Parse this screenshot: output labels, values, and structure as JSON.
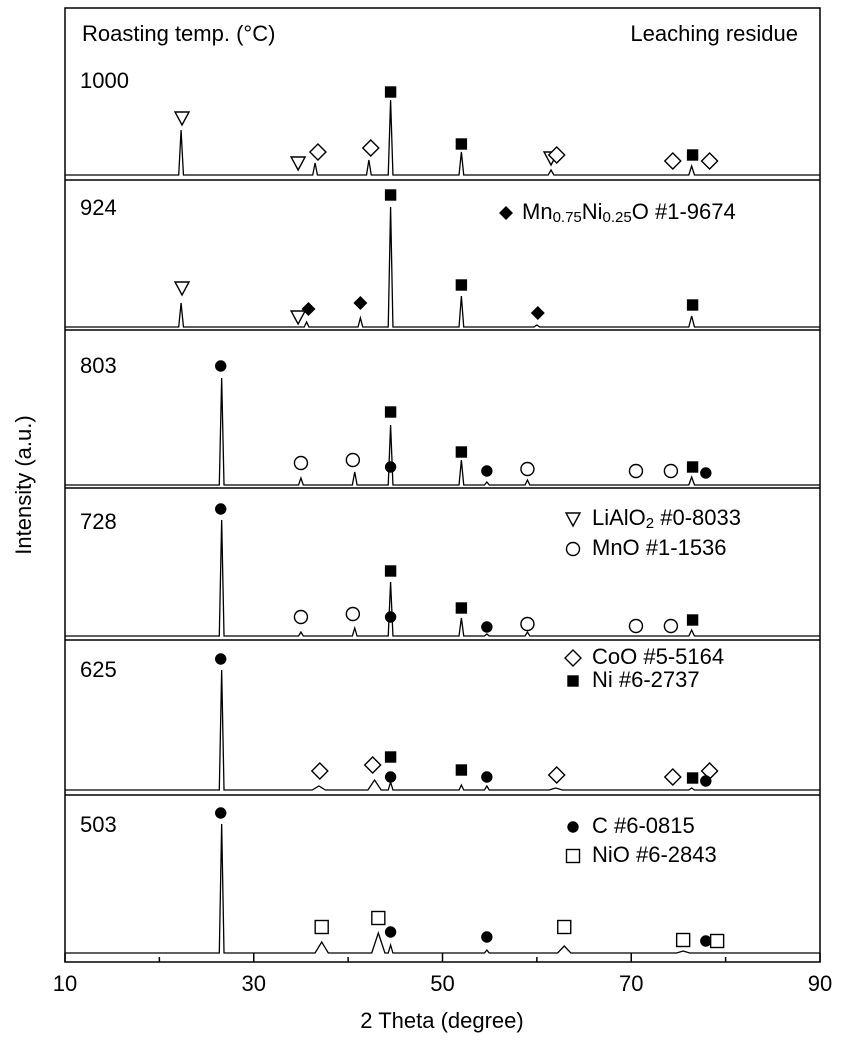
{
  "chart_data": {
    "type": "line",
    "titles": [
      "Roasting temp. (°C)",
      "Leaching residue"
    ],
    "xlabel": "2 Theta (degree)",
    "ylabel": "Intensity (a.u.)",
    "xlim": [
      10,
      90
    ],
    "xticks": [
      10,
      30,
      50,
      70,
      90
    ],
    "xminorticks": [
      20,
      40,
      60,
      80
    ],
    "ylim": [
      0,
      954
    ],
    "series": [
      {
        "name": "1000",
        "color": "#000000",
        "x": [
          10,
          22.05,
          22.3,
          22.55,
          36.25,
          36.5,
          36.75,
          41.95,
          42.2,
          42.45,
          44.25,
          44.5,
          44.75,
          51.75,
          52.0,
          52.25,
          61.2,
          61.5,
          61.8,
          76.1,
          76.4,
          76.7,
          90
        ],
        "values": [
          787,
          787,
          832,
          787,
          787,
          799,
          787,
          787,
          802,
          787,
          787,
          862,
          787,
          787,
          810,
          787,
          787,
          792,
          787,
          787,
          796,
          787,
          787
        ]
      },
      {
        "name": "924",
        "color": "#000000",
        "x": [
          10,
          22.05,
          22.3,
          22.55,
          35.35,
          35.6,
          35.85,
          41.05,
          41.3,
          41.55,
          44.25,
          44.5,
          44.75,
          51.75,
          52.0,
          52.25,
          59.7,
          60.0,
          60.3,
          76.1,
          76.4,
          76.7,
          90
        ],
        "values": [
          635,
          635,
          659,
          635,
          635,
          640,
          635,
          635,
          644,
          635,
          635,
          755,
          635,
          635,
          666,
          635,
          635,
          637,
          635,
          635,
          646,
          635,
          635
        ]
      },
      {
        "name": "803",
        "color": "#000000",
        "x": [
          10,
          26.35,
          26.6,
          26.85,
          34.75,
          35.0,
          35.25,
          40.45,
          40.7,
          40.95,
          44.25,
          44.5,
          44.75,
          51.75,
          52.0,
          52.25,
          54.45,
          54.7,
          54.95,
          58.75,
          59.0,
          59.25,
          76.1,
          76.4,
          76.7,
          90
        ],
        "values": [
          477,
          477,
          584,
          477,
          477,
          484,
          477,
          477,
          490,
          477,
          477,
          537,
          477,
          477,
          502,
          477,
          477,
          480,
          477,
          477,
          482,
          477,
          477,
          485,
          477,
          477
        ]
      },
      {
        "name": "728",
        "color": "#000000",
        "x": [
          10,
          26.35,
          26.6,
          26.85,
          34.75,
          35.0,
          35.25,
          40.45,
          40.7,
          40.95,
          44.25,
          44.5,
          44.75,
          51.75,
          52.0,
          52.25,
          54.45,
          54.7,
          54.95,
          58.75,
          59.0,
          59.25,
          76.1,
          76.4,
          76.7,
          90
        ],
        "values": [
          326,
          326,
          442,
          326,
          326,
          330,
          326,
          326,
          334,
          326,
          326,
          380,
          326,
          326,
          344,
          326,
          326,
          328,
          326,
          326,
          330,
          326,
          326,
          332,
          326,
          326
        ]
      },
      {
        "name": "625",
        "color": "#000000",
        "x": [
          10,
          26.35,
          26.6,
          26.85,
          36.2,
          36.9,
          37.6,
          42.1,
          42.8,
          43.5,
          44.25,
          44.5,
          44.75,
          51.75,
          52.0,
          52.25,
          54.45,
          54.7,
          54.95,
          61.3,
          62.0,
          62.7,
          76.1,
          76.4,
          76.7,
          90
        ],
        "values": [
          172,
          172,
          292,
          172,
          172,
          176,
          172,
          172,
          182,
          172,
          172,
          180,
          172,
          172,
          177,
          172,
          172,
          176,
          172,
          172,
          174,
          172,
          172,
          174,
          172,
          172
        ]
      },
      {
        "name": "503",
        "color": "#000000",
        "x": [
          10,
          26.35,
          26.6,
          26.85,
          36.5,
          37.2,
          37.9,
          42.5,
          43.2,
          43.9,
          44.25,
          44.5,
          44.75,
          54.45,
          54.7,
          54.95,
          62.2,
          62.9,
          63.6,
          74.8,
          75.5,
          76.2,
          90
        ],
        "values": [
          9,
          9,
          138,
          9,
          9,
          20,
          9,
          9,
          29,
          9,
          9,
          17,
          9,
          9,
          12,
          9,
          9,
          16,
          9,
          9,
          11,
          9,
          9
        ]
      }
    ],
    "phases": [
      {
        "name": [
          {
            "text": "Mn"
          },
          {
            "text": "0.75",
            "sub": true
          },
          {
            "text": "Ni"
          },
          {
            "text": "0.25",
            "sub": true
          },
          {
            "text": "O #1-9674"
          }
        ],
        "symbol": "diamond",
        "filled": true,
        "x": [
          35.8,
          41.3,
          60.1
        ],
        "values": [
          653,
          659,
          649
        ]
      },
      {
        "name": [
          {
            "text": "LiAlO"
          },
          {
            "text": "2",
            "sub": true
          },
          {
            "text": " #0-8033"
          }
        ],
        "symbol": "triangle-down",
        "filled": false,
        "x": [
          22.4,
          34.7,
          61.5,
          22.4,
          34.7
        ],
        "values": [
          844,
          799,
          804,
          674,
          645
        ]
      },
      {
        "name": [
          {
            "text": "MnO #1-1536"
          }
        ],
        "symbol": "circle",
        "filled": false,
        "x": [
          35,
          40.5,
          59,
          70.5,
          74.2,
          35,
          40.5,
          59,
          70.5,
          74.2
        ],
        "values": [
          499,
          502,
          493,
          491,
          491,
          345,
          348,
          338,
          336,
          336
        ]
      },
      {
        "name": [
          {
            "text": "CoO #5-5164"
          }
        ],
        "symbol": "diamond",
        "filled": false,
        "x": [
          36.8,
          42.4,
          62.1,
          74.4,
          78.3,
          37,
          42.6,
          62.1,
          74.4,
          78.3
        ],
        "values": [
          810,
          814,
          807,
          801,
          801,
          191,
          197,
          187,
          185,
          191
        ]
      },
      {
        "name": [
          {
            "text": "Ni #6-2737"
          }
        ],
        "symbol": "square",
        "filled": true,
        "x": [
          44.5,
          52,
          76.5,
          44.5,
          52,
          76.5,
          44.5,
          52,
          76.5,
          44.5,
          52,
          76.5,
          44.5,
          52,
          76.5
        ],
        "values": [
          870,
          818,
          807,
          767,
          677,
          657,
          550,
          510,
          495,
          391,
          354,
          342,
          205,
          192,
          184
        ]
      },
      {
        "name": [
          {
            "text": "C #6-0815"
          }
        ],
        "symbol": "circle",
        "filled": true,
        "x": [
          26.5,
          44.5,
          54.7,
          77.9,
          26.5,
          44.5,
          54.7,
          26.5,
          44.5,
          54.7,
          77.9,
          26.5,
          44.5,
          54.7,
          77.9
        ],
        "values": [
          596,
          495,
          491,
          489,
          453,
          345,
          335,
          303,
          185,
          185,
          181,
          149,
          30,
          25,
          21
        ]
      },
      {
        "name": [
          {
            "text": "NiO #6-2843"
          }
        ],
        "symbol": "square",
        "filled": false,
        "x": [
          37.2,
          43.2,
          62.9,
          75.5,
          79.1
        ],
        "values": [
          35,
          44,
          35,
          22,
          21
        ]
      }
    ]
  }
}
